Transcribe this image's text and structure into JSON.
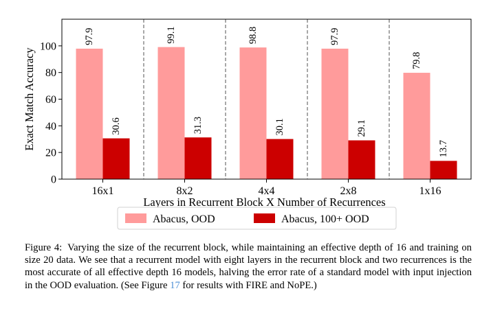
{
  "chart_data": {
    "type": "bar",
    "categories": [
      "16x1",
      "8x2",
      "4x4",
      "2x8",
      "1x16"
    ],
    "series": [
      {
        "name": "Abacus, OOD",
        "values": [
          97.9,
          99.1,
          98.8,
          97.9,
          79.8
        ],
        "color": "#ff9b9b"
      },
      {
        "name": "Abacus, 100+ OOD",
        "values": [
          30.6,
          31.3,
          30.1,
          29.1,
          13.7
        ],
        "color": "#cc0000"
      }
    ],
    "value_labels": [
      [
        "97.9",
        "99.1",
        "98.8",
        "97.9",
        "79.8"
      ],
      [
        "30.6",
        "31.3",
        "30.1",
        "29.1",
        "13.7"
      ]
    ],
    "xlabel": "Layers in Recurrent Block X Number of Recurrences",
    "ylabel": "Exact Match Accuracy",
    "ylim": [
      0,
      120
    ],
    "yticks": [
      0,
      20,
      40,
      60,
      80,
      100
    ],
    "ytick_labels": [
      "0",
      "20",
      "40",
      "60",
      "80",
      "100"
    ],
    "grid": false,
    "group_separators": "dashed",
    "legend_position": "bottom-center"
  },
  "caption": {
    "label": "Figure 4:",
    "text_before_ref": "Varying the size of the recurrent block, while maintaining an effective depth of 16 and training on size 20 data. We see that a recurrent model with eight layers in the recurrent block and two recurrences is the most accurate of all effective depth 16 models, halving the error rate of a standard model with input injection in the OOD evaluation. (See Figure ",
    "ref": "17",
    "text_after_ref": " for results with FIRE and NoPE.)"
  }
}
